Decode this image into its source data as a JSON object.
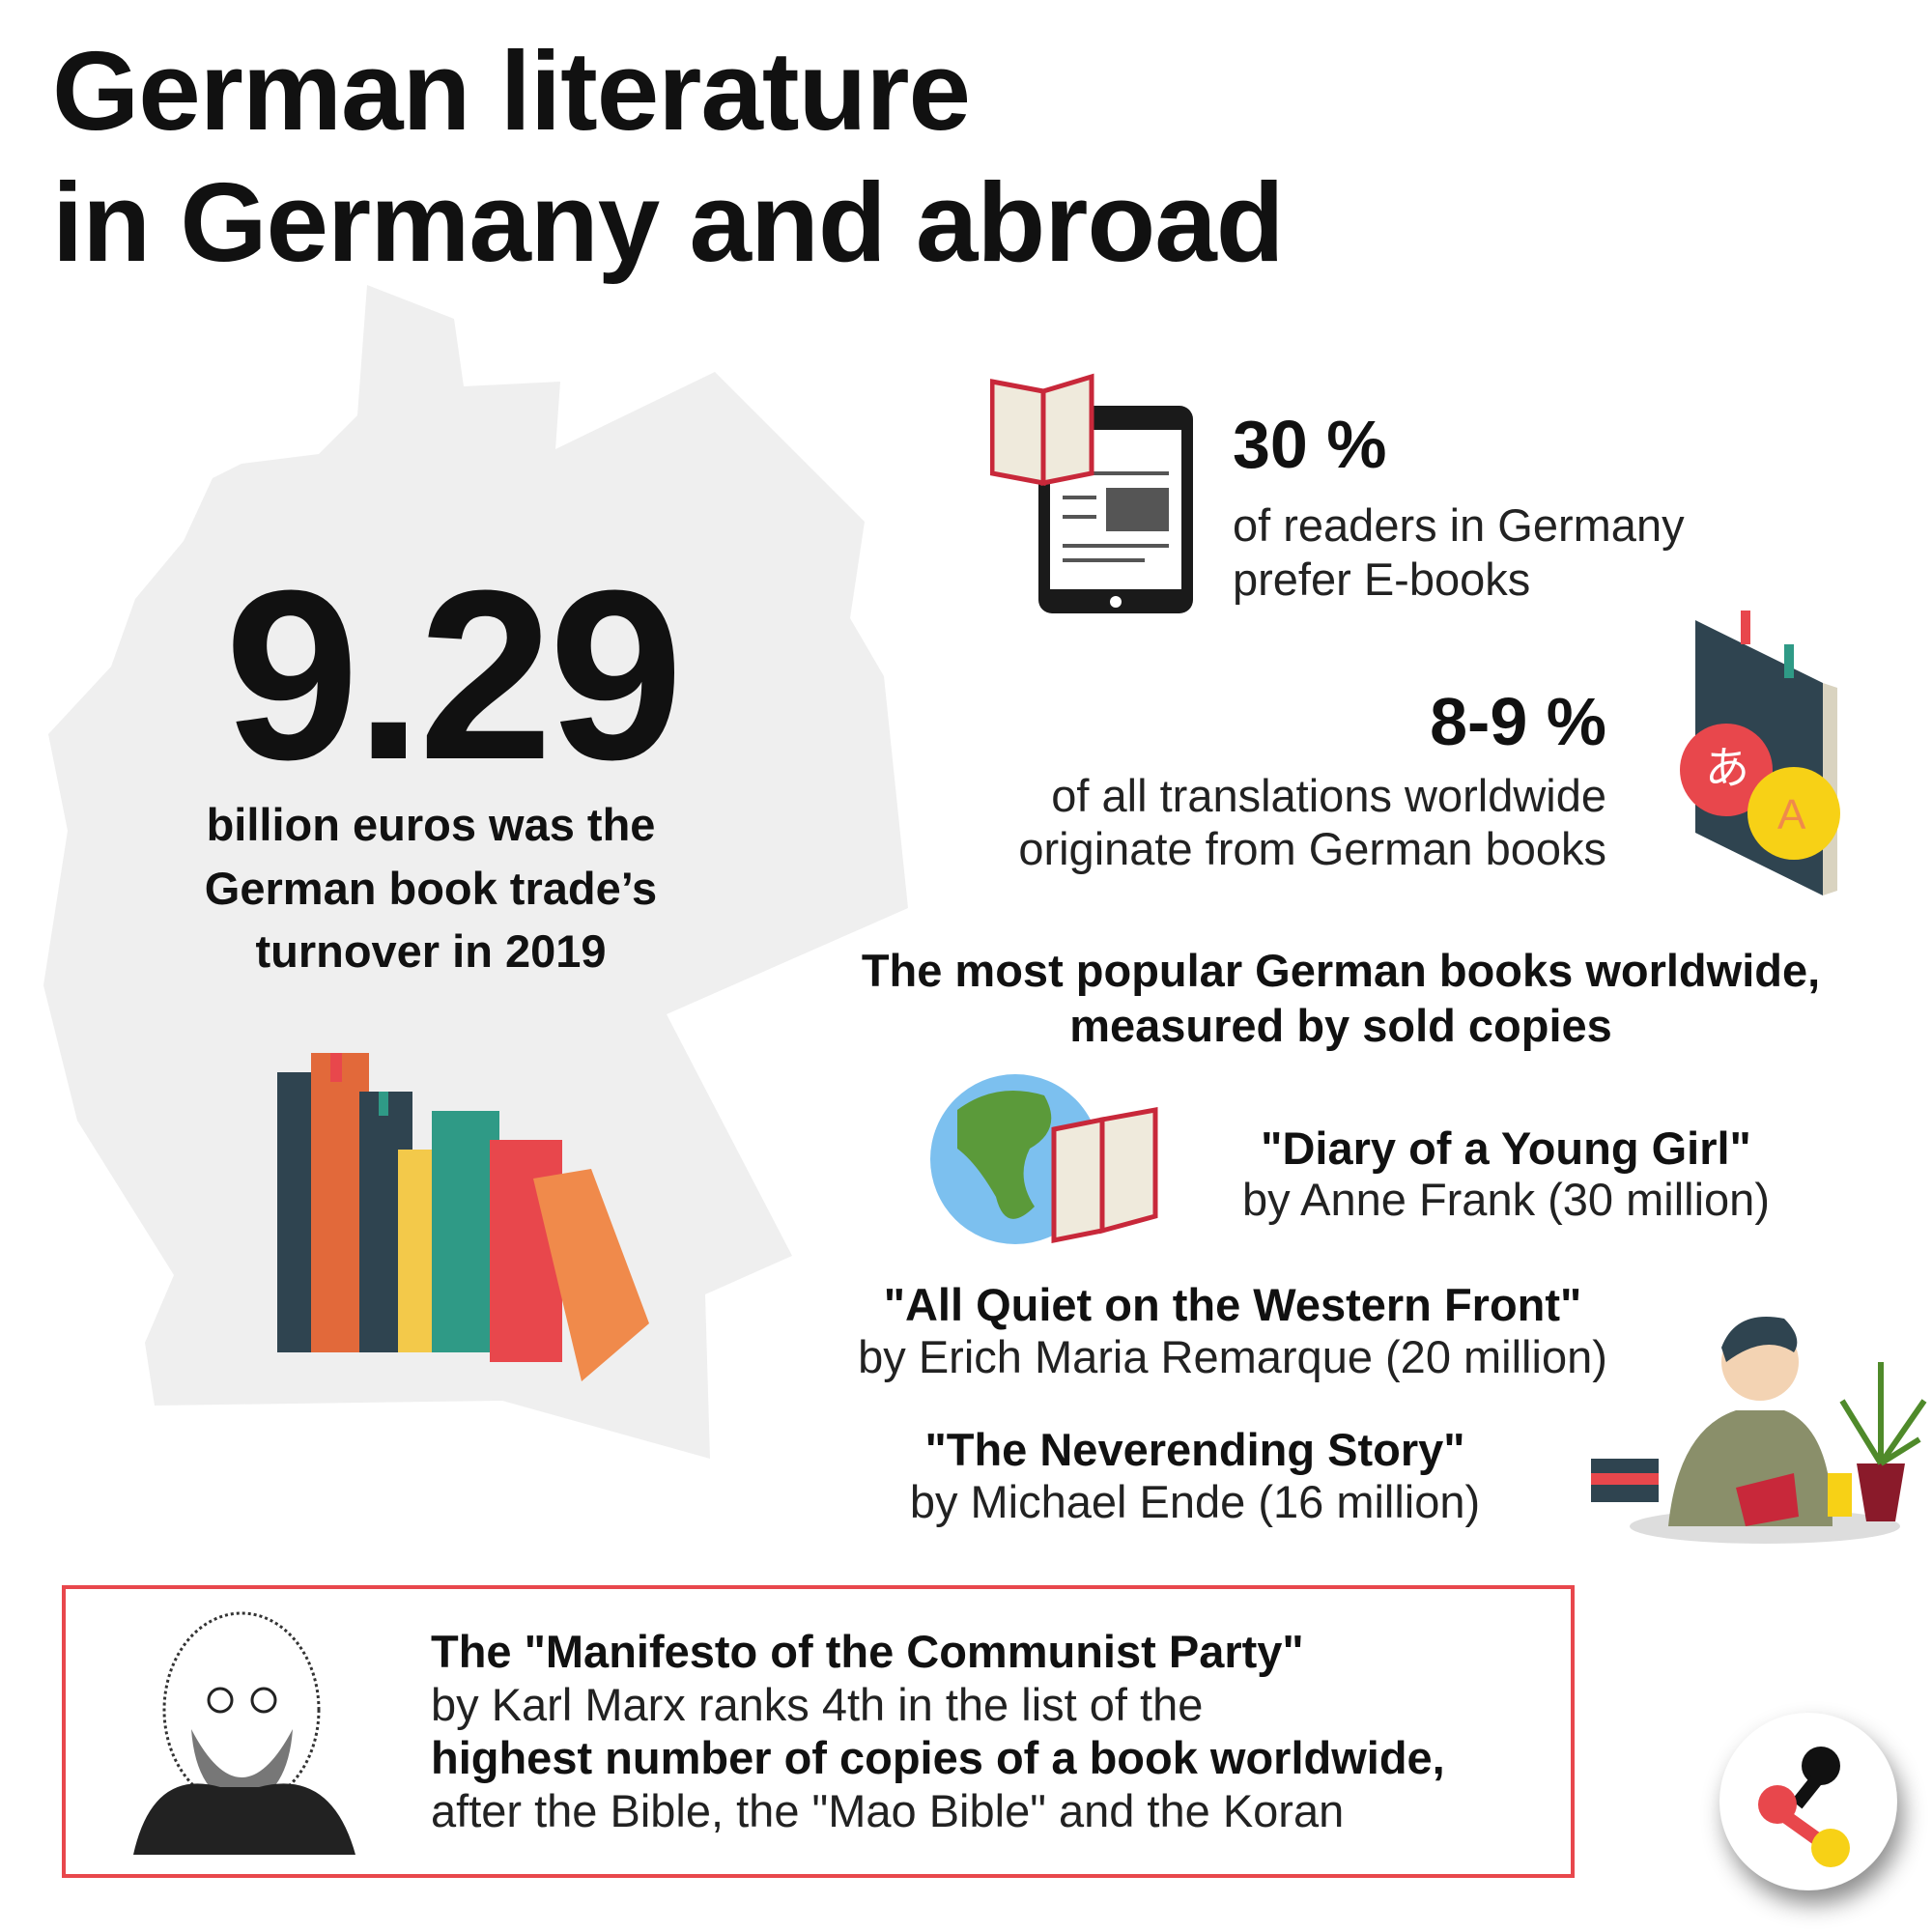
{
  "title": {
    "line1": "German literature",
    "line2": "in Germany and abroad"
  },
  "turnover": {
    "value": "9.29",
    "lines": [
      "billion euros was the",
      "German book trade’s",
      "turnover in 2019"
    ]
  },
  "ebooks": {
    "value": "30 %",
    "lines": [
      "of readers in Germany",
      "prefer E-books"
    ]
  },
  "translations": {
    "value": "8-9 %",
    "lines": [
      "of all translations worldwide",
      "originate from German books"
    ],
    "icon_letters": [
      "あ",
      "A"
    ]
  },
  "popular": {
    "heading": [
      "The most popular German books worldwide,",
      "measured by sold copies"
    ],
    "books": [
      {
        "title": "\"Diary of a Young Girl\"",
        "byline": "by Anne Frank (30 million)"
      },
      {
        "title": "\"All Quiet on the Western Front\"",
        "byline": "by Erich Maria Remarque (20 million)"
      },
      {
        "title": "\"The Neverending Story\"",
        "byline": "by Michael Ende (16 million)"
      }
    ]
  },
  "manifesto": {
    "line1": "The \"Manifesto of the Communist Party\"",
    "line2": "by Karl Marx ranks 4th in the list of the",
    "line3": "highest number of copies of a book worldwide,",
    "line4": "after the Bible, the \"Mao Bible\" and the Koran"
  },
  "colors": {
    "accent_red": "#e8474c",
    "map_grey": "#efefef",
    "yellow": "#f7d116"
  }
}
